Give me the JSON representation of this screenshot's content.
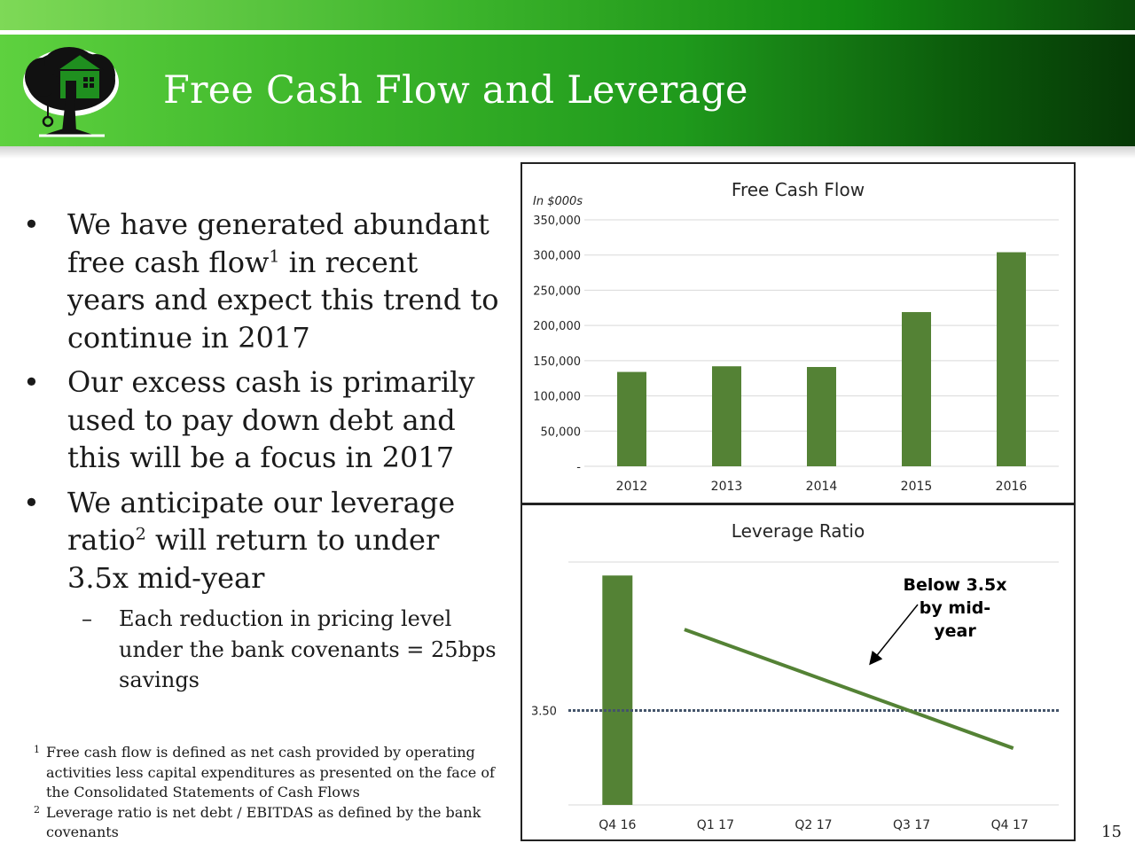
{
  "header": {
    "title": "Free Cash Flow and Leverage"
  },
  "bullets": [
    {
      "parts": [
        "We have generated abundant free cash flow",
        "1",
        " in recent years and expect this trend to continue in 2017"
      ]
    },
    {
      "parts": [
        "Our excess cash is primarily used to pay down debt and this will be a focus in 2017",
        "",
        ""
      ]
    },
    {
      "parts": [
        "We anticipate our leverage ratio",
        "2",
        " will return to under 3.5x mid-year"
      ]
    }
  ],
  "subbullet": {
    "marker": "–",
    "text": "Each reduction in pricing level under the bank covenants = 25bps savings"
  },
  "bullet_marker": "•",
  "footnotes": [
    {
      "mark": "1",
      "text": "Free cash flow is defined as net cash provided by operating activities less capital expenditures as presented on the face of the Consolidated Statements of Cash Flows"
    },
    {
      "mark": "2",
      "text": "Leverage ratio is net debt / EBITDAS as defined by the bank covenants"
    }
  ],
  "page_number": "15",
  "colors": {
    "bar": "#548235",
    "line": "#548235",
    "reference": "#44546a",
    "grid": "#d9d9d9"
  },
  "chart_data": [
    {
      "type": "bar",
      "title": "Free Cash Flow",
      "unit_note": "In $000s",
      "categories": [
        "2012",
        "2013",
        "2014",
        "2015",
        "2016"
      ],
      "values": [
        134000,
        142000,
        141000,
        219000,
        304000
      ],
      "ylim": [
        0,
        350000
      ],
      "yticks": [
        0,
        50000,
        100000,
        150000,
        200000,
        250000,
        300000,
        350000
      ],
      "ytick_labels": [
        "-",
        "50,000",
        "100,000",
        "150,000",
        "200,000",
        "250,000",
        "300,000",
        "350,000"
      ],
      "grid": true
    },
    {
      "type": "line",
      "title": "Leverage Ratio",
      "categories": [
        "Q4 16",
        "Q1 17",
        "Q2 17",
        "Q3 17",
        "Q4 17"
      ],
      "bar_series": {
        "category": "Q4 16",
        "value": 4.0
      },
      "line_series": {
        "points": [
          [
            1,
            3.8
          ],
          [
            4,
            3.36
          ]
        ]
      },
      "reference": {
        "value": 3.5,
        "label": "3.50"
      },
      "ylim": [
        3.15,
        4.05
      ],
      "annotation": {
        "text": "Below 3.5x by mid-year",
        "lines": [
          "Below 3.5x",
          "by mid-",
          "year"
        ]
      },
      "grid": true
    }
  ]
}
